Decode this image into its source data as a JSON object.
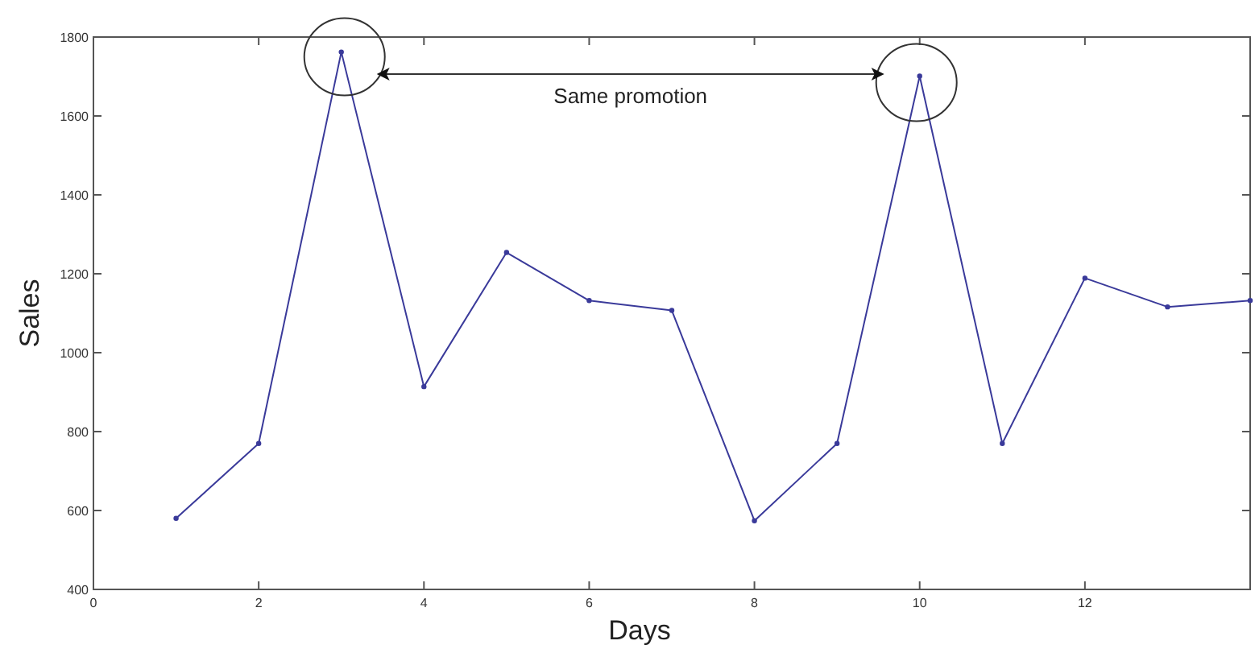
{
  "chart_data": {
    "type": "line",
    "xlabel": "Days",
    "ylabel": "Sales",
    "x": [
      1,
      2,
      3,
      4,
      5,
      6,
      7,
      8,
      9,
      10,
      11,
      12,
      13,
      14
    ],
    "series": [
      {
        "color": "#3a3a9a",
        "values": [
          580,
          770,
          1762,
          914,
          1254,
          1132,
          1107,
          574,
          770,
          1701,
          770,
          1189,
          1116,
          1132
        ]
      }
    ],
    "xlim": [
      0,
      14
    ],
    "xticks": [
      0,
      2,
      4,
      6,
      8,
      10,
      12
    ],
    "ylim": [
      400,
      1800
    ],
    "yticks": [
      400,
      600,
      800,
      1000,
      1200,
      1400,
      1600,
      1800
    ],
    "marker": "circle",
    "line_style": "solid",
    "annotations": [
      "Same promotion"
    ]
  }
}
